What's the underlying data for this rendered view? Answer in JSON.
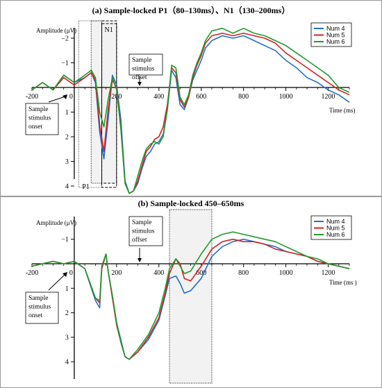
{
  "chart_data": [
    {
      "type": "line",
      "title": "(a)  Sample-locked P1（80–130ms）、N1（130–200ms）",
      "ylabel": "Amplitude (μV)",
      "xlabel": "Time (ms)",
      "xlim": [
        -200,
        1300
      ],
      "ylim": [
        -2.5,
        4.5
      ],
      "y_inverted": true,
      "x_ticks": [
        -200,
        0,
        200,
        400,
        600,
        800,
        1000,
        1200
      ],
      "y_ticks": [
        -2,
        -1,
        1,
        2,
        3,
        4
      ],
      "grid": false,
      "legend_position": "top-right",
      "shaded_windows": [
        {
          "label": "P1",
          "start": 80,
          "end": 130
        },
        {
          "label": "N1",
          "start": 130,
          "end": 200
        }
      ],
      "annotations": [
        {
          "text": "Sample stimulus onset",
          "x": 0
        },
        {
          "text": "Sample stimulus offset",
          "x": 300
        }
      ],
      "series": [
        {
          "name": "Num 4",
          "color": "#1f6fcc",
          "x": [
            -200,
            -150,
            -100,
            -50,
            0,
            50,
            80,
            100,
            120,
            140,
            160,
            180,
            200,
            220,
            240,
            260,
            280,
            300,
            320,
            340,
            360,
            380,
            400,
            420,
            440,
            460,
            480,
            500,
            520,
            540,
            560,
            580,
            600,
            620,
            650,
            700,
            750,
            800,
            850,
            900,
            950,
            1000,
            1050,
            1100,
            1150,
            1200,
            1250,
            1300
          ],
          "y": [
            0.1,
            -0.2,
            0.1,
            -0.5,
            -0.2,
            -0.4,
            -0.6,
            -0.2,
            1.8,
            2.9,
            1.3,
            -0.5,
            -0.1,
            1.3,
            3.8,
            4.3,
            4.2,
            3.9,
            3.3,
            2.8,
            2.6,
            2.3,
            2.2,
            1.9,
            0.9,
            -0.7,
            -0.4,
            0.7,
            0.9,
            0.4,
            -0.3,
            -0.7,
            -1.1,
            -1.6,
            -1.9,
            -2.1,
            -2.0,
            -2.1,
            -1.9,
            -1.7,
            -1.5,
            -1.1,
            -0.8,
            -0.4,
            -0.2,
            0.1,
            0.3,
            0.6
          ]
        },
        {
          "name": "Num 5",
          "color": "#d42020",
          "x": [
            -200,
            -150,
            -100,
            -50,
            0,
            50,
            80,
            100,
            120,
            140,
            160,
            180,
            200,
            220,
            240,
            260,
            280,
            300,
            320,
            340,
            360,
            380,
            400,
            420,
            440,
            460,
            480,
            500,
            520,
            540,
            560,
            580,
            600,
            620,
            650,
            700,
            750,
            800,
            850,
            900,
            950,
            1000,
            1050,
            1100,
            1150,
            1200,
            1250,
            1300
          ],
          "y": [
            0.1,
            -0.2,
            0.1,
            -0.4,
            -0.1,
            -0.4,
            -0.6,
            -0.3,
            1.5,
            2.6,
            0.9,
            -0.3,
            0.0,
            1.6,
            3.9,
            4.3,
            4.2,
            3.8,
            3.2,
            2.6,
            2.4,
            2.1,
            2.0,
            1.6,
            0.7,
            -0.8,
            -0.6,
            0.5,
            0.8,
            0.4,
            -0.4,
            -0.9,
            -1.3,
            -1.8,
            -2.1,
            -2.2,
            -2.1,
            -2.2,
            -2.1,
            -2.0,
            -1.8,
            -1.4,
            -1.1,
            -0.8,
            -0.5,
            -0.2,
            0.1,
            0.3
          ]
        },
        {
          "name": "Num 6",
          "color": "#1f9a2a",
          "x": [
            -200,
            -150,
            -100,
            -50,
            0,
            50,
            80,
            100,
            120,
            140,
            160,
            180,
            200,
            220,
            240,
            260,
            280,
            300,
            320,
            340,
            360,
            380,
            400,
            420,
            440,
            460,
            480,
            500,
            520,
            540,
            560,
            580,
            600,
            620,
            650,
            700,
            750,
            800,
            850,
            900,
            950,
            1000,
            1050,
            1100,
            1150,
            1200,
            1250,
            1300
          ],
          "y": [
            0.1,
            -0.2,
            0.1,
            -0.5,
            -0.2,
            -0.5,
            -0.7,
            -0.4,
            1.0,
            1.6,
            0.5,
            -0.4,
            0.1,
            1.7,
            3.9,
            4.3,
            4.2,
            3.6,
            3.0,
            2.5,
            2.3,
            2.2,
            2.3,
            2.0,
            0.9,
            -0.9,
            -0.8,
            0.4,
            0.7,
            0.3,
            -0.5,
            -1.0,
            -1.4,
            -1.9,
            -2.3,
            -2.4,
            -2.2,
            -2.4,
            -2.2,
            -2.1,
            -1.9,
            -1.7,
            -1.4,
            -1.1,
            -0.8,
            -0.5,
            0.0,
            0.2
          ]
        }
      ]
    },
    {
      "type": "line",
      "title": "(b)  Sample-locked 450–650ms",
      "ylabel": "Amplitude (μV)",
      "xlabel": "Time (ms )",
      "xlim": [
        -200,
        1300
      ],
      "ylim": [
        -1.8,
        4.2
      ],
      "y_inverted": true,
      "x_ticks": [
        -200,
        0,
        200,
        400,
        600,
        800,
        1000,
        1200
      ],
      "y_ticks": [
        -1,
        1,
        2,
        3,
        4
      ],
      "grid": false,
      "legend_position": "top-right",
      "shaded_windows": [
        {
          "label": "",
          "start": 450,
          "end": 650
        }
      ],
      "annotations": [
        {
          "text": "Sample stimulus onset",
          "x": 0
        },
        {
          "text": "Sample stimulus offset",
          "x": 300
        }
      ],
      "series": [
        {
          "name": "Num 4",
          "color": "#1f6fcc",
          "x": [
            -200,
            -150,
            -100,
            -50,
            0,
            50,
            100,
            120,
            130,
            150,
            160,
            180,
            200,
            220,
            240,
            260,
            300,
            350,
            400,
            430,
            450,
            480,
            500,
            520,
            550,
            600,
            650,
            700,
            750,
            800,
            850,
            900,
            950,
            1000,
            1050,
            1100,
            1150,
            1200,
            1250,
            1300
          ],
          "y": [
            0.1,
            0.0,
            -0.1,
            0.0,
            -0.1,
            0.2,
            1.5,
            1.8,
            0.2,
            -0.4,
            0.3,
            1.3,
            2.4,
            3.1,
            3.8,
            3.9,
            3.6,
            3.1,
            2.3,
            1.3,
            0.6,
            0.5,
            0.8,
            1.2,
            1.1,
            0.6,
            -0.3,
            -0.7,
            -0.9,
            -1.0,
            -0.9,
            -0.8,
            -0.7,
            -0.5,
            -0.4,
            -0.3,
            -0.1,
            0.0,
            0.1,
            0.2
          ]
        },
        {
          "name": "Num 5",
          "color": "#d42020",
          "x": [
            -200,
            -150,
            -100,
            -50,
            0,
            50,
            100,
            120,
            130,
            150,
            160,
            180,
            200,
            220,
            240,
            260,
            300,
            350,
            400,
            430,
            450,
            480,
            500,
            520,
            550,
            600,
            650,
            700,
            750,
            800,
            850,
            900,
            950,
            1000,
            1050,
            1100,
            1150,
            1200,
            1250,
            1300
          ],
          "y": [
            0.1,
            0.0,
            -0.1,
            0.0,
            -0.1,
            0.2,
            1.4,
            1.6,
            0.2,
            -0.4,
            0.3,
            1.4,
            2.5,
            3.2,
            3.8,
            3.9,
            3.6,
            3.0,
            2.2,
            1.2,
            0.4,
            -0.2,
            0.0,
            0.6,
            0.7,
            0.1,
            -0.6,
            -0.9,
            -1.0,
            -0.9,
            -0.9,
            -0.8,
            -0.6,
            -0.5,
            -0.4,
            -0.3,
            -0.1,
            0.0,
            0.1,
            0.2
          ]
        },
        {
          "name": "Num 6",
          "color": "#1f9a2a",
          "x": [
            -200,
            -150,
            -100,
            -50,
            0,
            50,
            100,
            120,
            130,
            150,
            160,
            180,
            200,
            220,
            240,
            260,
            300,
            350,
            400,
            430,
            450,
            480,
            500,
            520,
            550,
            600,
            650,
            700,
            750,
            800,
            850,
            900,
            950,
            1000,
            1050,
            1100,
            1150,
            1200,
            1250,
            1300
          ],
          "y": [
            0.1,
            0.0,
            -0.1,
            0.0,
            -0.1,
            0.2,
            1.4,
            1.5,
            0.1,
            -0.4,
            0.3,
            1.3,
            2.4,
            3.2,
            3.8,
            3.9,
            3.5,
            2.9,
            2.0,
            1.0,
            0.2,
            -0.2,
            0.1,
            0.4,
            0.3,
            -0.4,
            -1.0,
            -1.2,
            -1.3,
            -1.2,
            -1.1,
            -1.0,
            -0.9,
            -0.7,
            -0.5,
            -0.3,
            -0.2,
            0.0,
            0.1,
            0.2
          ]
        }
      ]
    }
  ]
}
